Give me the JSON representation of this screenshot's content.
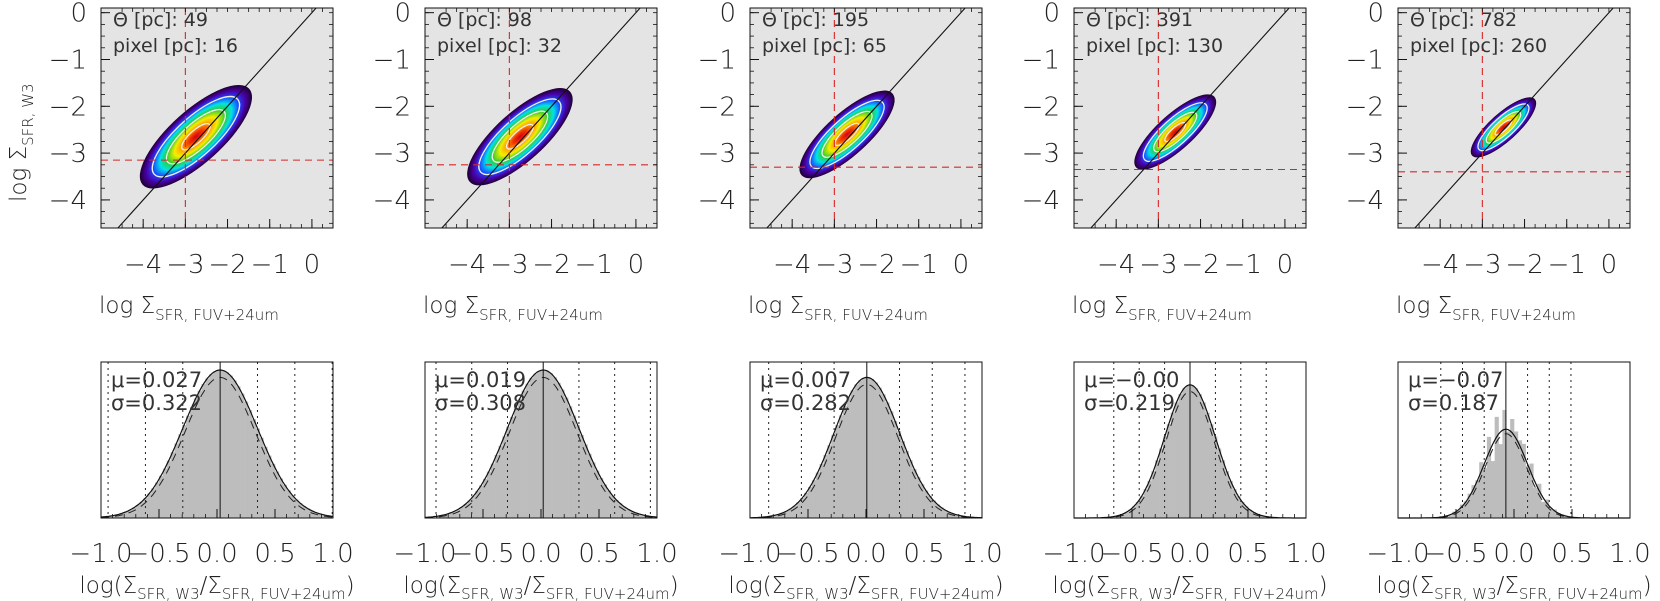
{
  "chart_data": [
    {
      "type": "heatmap+histogram",
      "theta_pc": "49",
      "pixel_pc": "16",
      "mu": "0.027",
      "sigma": "0.322",
      "theta_label": "Θ [pc]: ",
      "pixel_label": "pixel [pc]: ",
      "hline_y": -3.15,
      "vline_x": -3.0,
      "cloud": {
        "cx": -2.75,
        "cy": -2.65,
        "major": 1.7,
        "minor": 0.62
      },
      "hist_scale": 1.0
    },
    {
      "type": "heatmap+histogram",
      "theta_pc": "98",
      "pixel_pc": "32",
      "mu": "0.019",
      "sigma": "0.308",
      "theta_label": "Θ [pc]: ",
      "pixel_label": "pixel [pc]: ",
      "hline_y": -3.25,
      "vline_x": -3.0,
      "cloud": {
        "cx": -2.75,
        "cy": -2.65,
        "major": 1.6,
        "minor": 0.58
      },
      "hist_scale": 1.0
    },
    {
      "type": "heatmap+histogram",
      "theta_pc": "195",
      "pixel_pc": "65",
      "mu": "0.007",
      "sigma": "0.282",
      "theta_label": "Θ [pc]: ",
      "pixel_label": "pixel [pc]: ",
      "hline_y": -3.3,
      "vline_x": -3.0,
      "cloud": {
        "cx": -2.7,
        "cy": -2.6,
        "major": 1.45,
        "minor": 0.5
      },
      "hist_scale": 0.95
    },
    {
      "type": "heatmap+histogram",
      "theta_pc": "391",
      "pixel_pc": "130",
      "mu": "−0.00",
      "sigma": "0.219",
      "theta_label": "Θ [pc]: ",
      "pixel_label": "pixel [pc]: ",
      "hline_y": -3.35,
      "vline_x": -3.0,
      "cloud": {
        "cx": -2.6,
        "cy": -2.55,
        "major": 1.25,
        "minor": 0.42
      },
      "hist_scale": 0.9
    },
    {
      "type": "heatmap+histogram",
      "theta_pc": "782",
      "pixel_pc": "260",
      "mu": "−0.07",
      "sigma": "0.187",
      "theta_label": "Θ [pc]: ",
      "pixel_label": "pixel [pc]: ",
      "hline_y": -3.4,
      "vline_x": -3.0,
      "cloud": {
        "cx": -2.5,
        "cy": -2.45,
        "major": 1.0,
        "minor": 0.33
      },
      "hist_scale": 0.6
    }
  ],
  "top_axes": {
    "xlim": [
      -5,
      0.5
    ],
    "ylim": [
      -4.6,
      0.1
    ],
    "xticks": [
      -4,
      -3,
      -2,
      -1,
      0
    ],
    "yticks": [
      0,
      -1,
      -2,
      -3,
      -4
    ],
    "xtick_labels": [
      "−4",
      "−3",
      "−2",
      "−1",
      "0"
    ],
    "ytick_labels": [
      "0",
      "−1",
      "−2",
      "−3",
      "−4"
    ],
    "xlabel_main": "log Σ",
    "xlabel_sub": "SFR, FUV+24um",
    "ylabel_main": "log Σ",
    "ylabel_sub": "SFR, W3"
  },
  "bottom_axes": {
    "xlim": [
      -1.0,
      1.0
    ],
    "xticks": [
      -1.0,
      -0.5,
      0.0,
      0.5,
      1.0
    ],
    "xtick_labels": [
      "−1.0",
      "−0.5",
      "0.0",
      "0.5",
      "1.0"
    ],
    "xlabel_a": "log(Σ",
    "xlabel_sub1": "SFR, W3",
    "xlabel_b": "/Σ",
    "xlabel_sub2": "SFR, FUV+24um",
    "xlabel_c": ")",
    "mu_symbol": "μ=",
    "sigma_symbol": "σ="
  },
  "colors": {
    "panel_bg": "#e4e4e4",
    "hist_fill": "#bdbdbd",
    "reference_line": "#d62728"
  }
}
